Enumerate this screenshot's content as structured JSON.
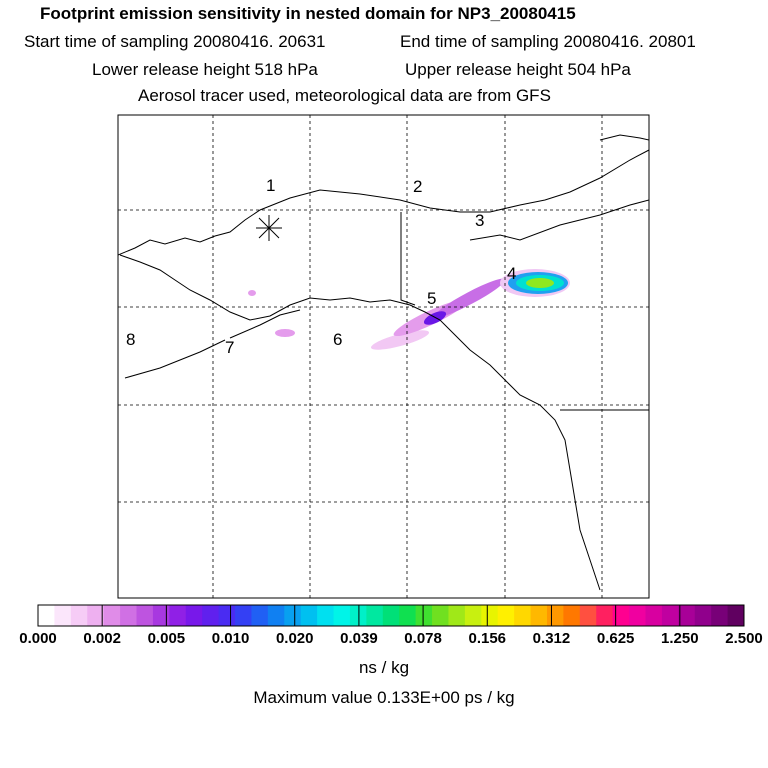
{
  "titles": {
    "line1": "Footprint emission sensitivity in nested domain for NP3_20080415",
    "start": "Start time of sampling 20080416. 20631",
    "end": "End time of sampling 20080416. 20801",
    "lower": "Lower release height  518 hPa",
    "upper": "Upper release height  504 hPa",
    "line4": "Aerosol tracer used, meteorological data are from GFS"
  },
  "region_labels": [
    "1",
    "2",
    "3",
    "4",
    "5",
    "6",
    "7",
    "8"
  ],
  "colorbar": {
    "ticks": [
      "0.000",
      "0.002",
      "0.005",
      "0.010",
      "0.020",
      "0.039",
      "0.078",
      "0.156",
      "0.312",
      "0.625",
      "1.250",
      "2.500"
    ],
    "colors": [
      "#ffffff",
      "#fbe6fb",
      "#f6ccf6",
      "#eeb0f0",
      "#e08ce8",
      "#d070e4",
      "#be54e0",
      "#a838e0",
      "#9020e6",
      "#7818ea",
      "#6020ee",
      "#4a2cf2",
      "#3440f4",
      "#2060f4",
      "#1080f2",
      "#08a0f0",
      "#00c0f0",
      "#00e0f0",
      "#00f4e8",
      "#00f0c8",
      "#00e8a0",
      "#00e078",
      "#10e050",
      "#40e030",
      "#70e020",
      "#a0e818",
      "#c8f010",
      "#e8f400",
      "#fff000",
      "#ffd800",
      "#ffb800",
      "#ff9800",
      "#ff7800",
      "#ff5040",
      "#ff2060",
      "#ff0090",
      "#f000a0",
      "#d800a0",
      "#c000a0",
      "#a80098",
      "#90008c",
      "#780078",
      "#600060"
    ],
    "units": "ns / kg"
  },
  "maximum": "Maximum value  0.133E+00 ps / kg",
  "colors": {
    "frame": "#000000",
    "coast": "#000000",
    "grid": "#000000"
  },
  "icons": {
    "release_site": "asterisk-icon"
  }
}
